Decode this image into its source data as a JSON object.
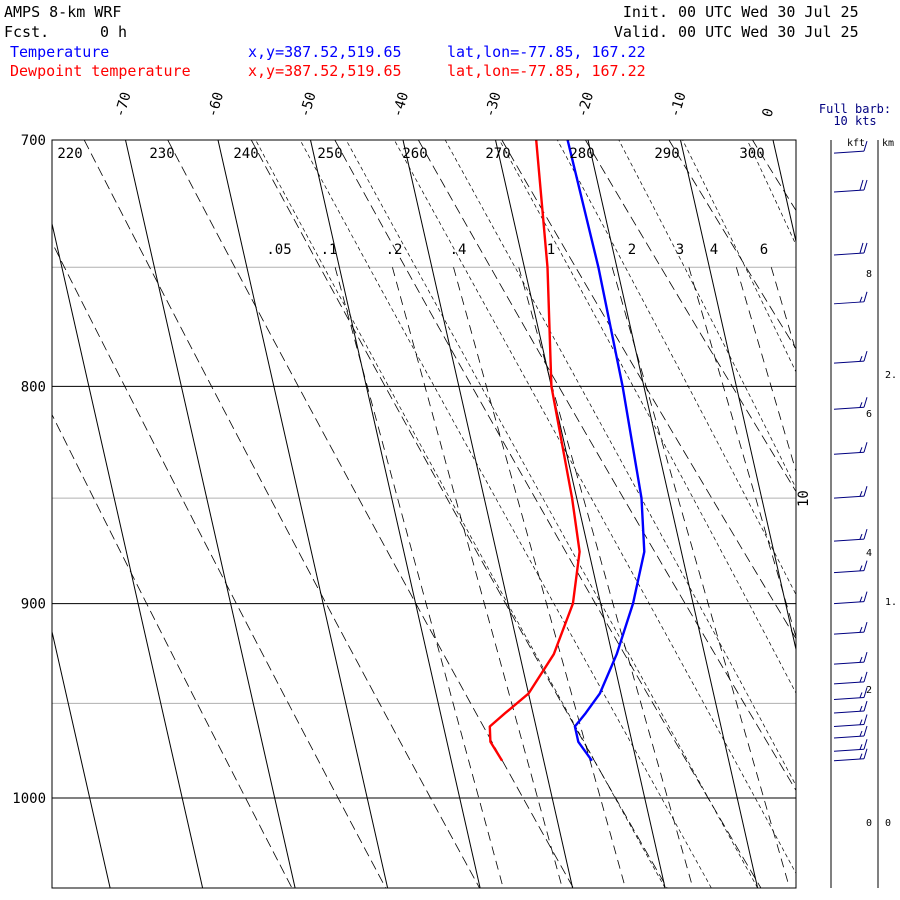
{
  "header": {
    "model": "AMPS 8-km WRF",
    "fcst_label": "Fcst.",
    "fcst_value": "0 h",
    "init_label": "Init.",
    "init_value": "00 UTC Wed 30 Jul 25",
    "valid_label": "Valid.",
    "valid_value": "00 UTC Wed 30 Jul 25"
  },
  "legend": [
    {
      "name": "Temperature",
      "color": "#0000ff",
      "xy": "x,y=387.52,519.65",
      "latlon": "lat,lon=-77.85, 167.22"
    },
    {
      "name": "Dewpoint temperature",
      "color": "#ff0000",
      "xy": "x,y=387.52,519.65",
      "latlon": "lat,lon=-77.85, 167.22"
    }
  ],
  "barb_panel": {
    "title_line1": "Full barb:",
    "title_line2": "10 kts",
    "kft_label": "kft",
    "km_label": "km",
    "kft_ticks": [
      "8",
      "6",
      "4",
      "2",
      "0"
    ],
    "km_ticks": [
      "2.",
      "1.",
      "0."
    ]
  },
  "chart_data": {
    "type": "skew-t",
    "pressure_levels": [
      700,
      800,
      900,
      1000
    ],
    "pressure_range": [
      700,
      1045
    ],
    "temperature_ticks": [
      -70,
      -60,
      -50,
      -40,
      -30,
      -20,
      -10,
      0
    ],
    "theta_ticks": [
      220,
      230,
      240,
      250,
      260,
      270,
      280,
      290,
      300
    ],
    "mixing_ratio_ticks": [
      ".05",
      ".1",
      ".2",
      ".4",
      "1",
      "2",
      "3",
      "4",
      "6"
    ],
    "label_10": "10",
    "series": [
      {
        "name": "Temperature",
        "color": "#0000ff",
        "points": [
          [
            700,
            -22.2
          ],
          [
            750,
            -22.0
          ],
          [
            800,
            -22.3
          ],
          [
            850,
            -23.0
          ],
          [
            875,
            -24.0
          ],
          [
            900,
            -26.5
          ],
          [
            925,
            -29.5
          ],
          [
            945,
            -32.3
          ],
          [
            955,
            -34.3
          ],
          [
            962,
            -35.8
          ],
          [
            970,
            -35.8
          ],
          [
            980,
            -34.8
          ]
        ]
      },
      {
        "name": "Dewpoint temperature",
        "color": "#ff0000",
        "points": [
          [
            700,
            -25.6
          ],
          [
            750,
            -27.5
          ],
          [
            800,
            -30.0
          ],
          [
            850,
            -30.5
          ],
          [
            875,
            -31.0
          ],
          [
            900,
            -33.0
          ],
          [
            925,
            -36.3
          ],
          [
            945,
            -40.0
          ],
          [
            955,
            -43.0
          ],
          [
            962,
            -45.0
          ],
          [
            970,
            -45.3
          ],
          [
            980,
            -44.5
          ]
        ]
      }
    ],
    "wind_barbs_kt": [
      {
        "p": 705,
        "speed": 10,
        "dir": 240
      },
      {
        "p": 720,
        "speed": 20,
        "dir": 240
      },
      {
        "p": 745,
        "speed": 20,
        "dir": 240
      },
      {
        "p": 765,
        "speed": 15,
        "dir": 240
      },
      {
        "p": 790,
        "speed": 15,
        "dir": 245
      },
      {
        "p": 810,
        "speed": 15,
        "dir": 245
      },
      {
        "p": 830,
        "speed": 15,
        "dir": 245
      },
      {
        "p": 850,
        "speed": 15,
        "dir": 245
      },
      {
        "p": 870,
        "speed": 15,
        "dir": 245
      },
      {
        "p": 885,
        "speed": 15,
        "dir": 245
      },
      {
        "p": 900,
        "speed": 15,
        "dir": 245
      },
      {
        "p": 915,
        "speed": 15,
        "dir": 240
      },
      {
        "p": 930,
        "speed": 15,
        "dir": 230
      },
      {
        "p": 940,
        "speed": 15,
        "dir": 220
      },
      {
        "p": 948,
        "speed": 15,
        "dir": 215
      },
      {
        "p": 955,
        "speed": 15,
        "dir": 210
      },
      {
        "p": 962,
        "speed": 15,
        "dir": 205
      },
      {
        "p": 968,
        "speed": 15,
        "dir": 200
      },
      {
        "p": 975,
        "speed": 15,
        "dir": 200
      },
      {
        "p": 980,
        "speed": 15,
        "dir": 200
      }
    ]
  }
}
